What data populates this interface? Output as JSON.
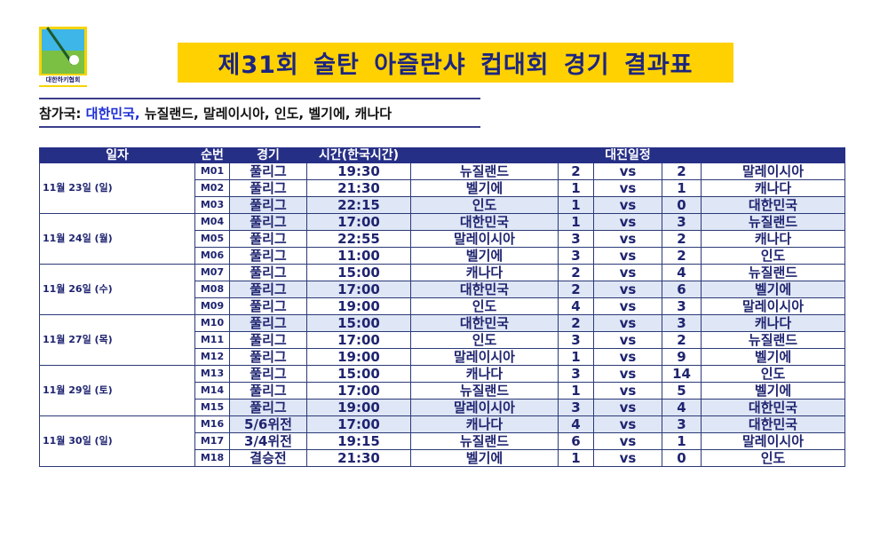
{
  "logo": {
    "text": "대한하키협회",
    "alt_text": "KOREA HOCKEY ASSOCIATION"
  },
  "title": "제31회 술탄 아즐란샤 컵대회 경기 결과표",
  "participants": {
    "label": "참가국:",
    "highlight": "대한민국,",
    "rest": "뉴질랜드, 말레이시아, 인도, 벨기에, 캐나다"
  },
  "colors": {
    "banner": "#ffd100",
    "header": "#262f86",
    "text": "#1f2470",
    "highlight_row": "#dfe6f5",
    "korea": "#1d2fd6"
  },
  "table": {
    "headers": {
      "date": "일자",
      "no": "순번",
      "type": "경기",
      "time": "시간(한국시간)",
      "match": "대진일정"
    },
    "days": [
      {
        "date": "11월 23일 (일)",
        "matches": [
          {
            "no": "M01",
            "type": "풀리그",
            "time": "19:30",
            "team1": "뉴질랜드",
            "score1": "2",
            "vs": "vs",
            "score2": "2",
            "team2": "말레이시아",
            "hl": false
          },
          {
            "no": "M02",
            "type": "풀리그",
            "time": "21:30",
            "team1": "벨기에",
            "score1": "1",
            "vs": "vs",
            "score2": "1",
            "team2": "캐나다",
            "hl": false
          },
          {
            "no": "M03",
            "type": "풀리그",
            "time": "22:15",
            "team1": "인도",
            "score1": "1",
            "vs": "vs",
            "score2": "0",
            "team2": "대한민국",
            "hl": true
          }
        ]
      },
      {
        "date": "11월 24일 (월)",
        "matches": [
          {
            "no": "M04",
            "type": "풀리그",
            "time": "17:00",
            "team1": "대한민국",
            "score1": "1",
            "vs": "vs",
            "score2": "3",
            "team2": "뉴질랜드",
            "hl": true
          },
          {
            "no": "M05",
            "type": "풀리그",
            "time": "22:55",
            "team1": "말레이시아",
            "score1": "3",
            "vs": "vs",
            "score2": "2",
            "team2": "캐나다",
            "hl": false
          },
          {
            "no": "M06",
            "type": "풀리그",
            "time": "11:00",
            "team1": "벨기에",
            "score1": "3",
            "vs": "vs",
            "score2": "2",
            "team2": "인도",
            "hl": false
          }
        ]
      },
      {
        "date": "11월 26일 (수)",
        "matches": [
          {
            "no": "M07",
            "type": "풀리그",
            "time": "15:00",
            "team1": "캐나다",
            "score1": "2",
            "vs": "vs",
            "score2": "4",
            "team2": "뉴질랜드",
            "hl": false
          },
          {
            "no": "M08",
            "type": "풀리그",
            "time": "17:00",
            "team1": "대한민국",
            "score1": "2",
            "vs": "vs",
            "score2": "6",
            "team2": "벨기에",
            "hl": true
          },
          {
            "no": "M09",
            "type": "풀리그",
            "time": "19:00",
            "team1": "인도",
            "score1": "4",
            "vs": "vs",
            "score2": "3",
            "team2": "말레이시아",
            "hl": false
          }
        ]
      },
      {
        "date": "11월 27일 (목)",
        "matches": [
          {
            "no": "M10",
            "type": "풀리그",
            "time": "15:00",
            "team1": "대한민국",
            "score1": "2",
            "vs": "vs",
            "score2": "3",
            "team2": "캐나다",
            "hl": true
          },
          {
            "no": "M11",
            "type": "풀리그",
            "time": "17:00",
            "team1": "인도",
            "score1": "3",
            "vs": "vs",
            "score2": "2",
            "team2": "뉴질랜드",
            "hl": false
          },
          {
            "no": "M12",
            "type": "풀리그",
            "time": "19:00",
            "team1": "말레이시아",
            "score1": "1",
            "vs": "vs",
            "score2": "9",
            "team2": "벨기에",
            "hl": false
          }
        ]
      },
      {
        "date": "11월 29일 (토)",
        "matches": [
          {
            "no": "M13",
            "type": "풀리그",
            "time": "15:00",
            "team1": "캐나다",
            "score1": "3",
            "vs": "vs",
            "score2": "14",
            "team2": "인도",
            "hl": false
          },
          {
            "no": "M14",
            "type": "풀리그",
            "time": "17:00",
            "team1": "뉴질랜드",
            "score1": "1",
            "vs": "vs",
            "score2": "5",
            "team2": "벨기에",
            "hl": false
          },
          {
            "no": "M15",
            "type": "풀리그",
            "time": "19:00",
            "team1": "말레이시아",
            "score1": "3",
            "vs": "vs",
            "score2": "4",
            "team2": "대한민국",
            "hl": true
          }
        ]
      },
      {
        "date": "11월 30일 (일)",
        "matches": [
          {
            "no": "M16",
            "type": "5/6위전",
            "time": "17:00",
            "team1": "캐나다",
            "score1": "4",
            "vs": "vs",
            "score2": "3",
            "team2": "대한민국",
            "hl": true
          },
          {
            "no": "M17",
            "type": "3/4위전",
            "time": "19:15",
            "team1": "뉴질랜드",
            "score1": "6",
            "vs": "vs",
            "score2": "1",
            "team2": "말레이시아",
            "hl": false
          },
          {
            "no": "M18",
            "type": "결승전",
            "time": "21:30",
            "team1": "벨기에",
            "score1": "1",
            "vs": "vs",
            "score2": "0",
            "team2": "인도",
            "hl": false
          }
        ]
      }
    ]
  }
}
